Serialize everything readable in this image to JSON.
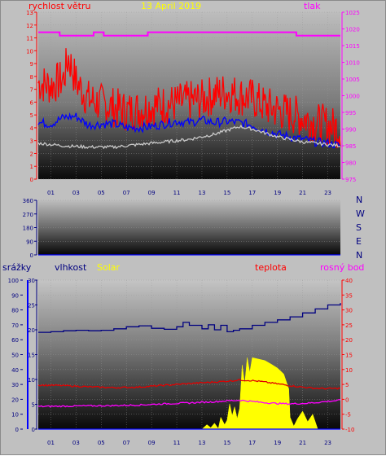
{
  "colors": {
    "background": "#c0c0c0",
    "wind": "#ff0000",
    "wind_avg": "#0000ff",
    "pressure": "#ff00ff",
    "gust_low": "#c8c8c8",
    "humidity": "#000080",
    "temperature": "#e00000",
    "dewpoint": "#ff00ff",
    "solar": "#ffff00",
    "rain": "#0000ff"
  },
  "chart_data": [
    {
      "type": "line",
      "title": "13 April 2019",
      "left_axis_label": "rychlost větru",
      "right_axis_label": "tlak",
      "x_ticks": [
        "01",
        "03",
        "05",
        "07",
        "09",
        "11",
        "13",
        "15",
        "17",
        "19",
        "21",
        "23"
      ],
      "x_range_hours": [
        0,
        24
      ],
      "left_ylim": [
        0,
        13
      ],
      "left_ticks": [
        0,
        1,
        2,
        3,
        4,
        5,
        6,
        7,
        8,
        9,
        10,
        11,
        12,
        13
      ],
      "right_ylim": [
        975,
        1025
      ],
      "right_ticks": [
        975,
        980,
        985,
        990,
        995,
        1000,
        1005,
        1010,
        1015,
        1020,
        1025
      ],
      "series": [
        {
          "key": "gust",
          "axis": "left",
          "color": "#ff0000",
          "style": "noisy",
          "x": [
            0,
            1,
            2,
            2.4,
            3,
            4,
            5,
            6,
            7,
            8,
            9,
            10,
            11,
            12,
            13,
            14,
            15,
            16,
            17,
            18,
            19,
            20,
            21,
            22,
            23,
            24
          ],
          "y": [
            7.5,
            7.3,
            7.8,
            9.5,
            7.6,
            6.2,
            5.9,
            5.6,
            5.3,
            5.4,
            5.7,
            5.8,
            5.9,
            6.1,
            6.2,
            6.6,
            6.8,
            6.5,
            6.3,
            5.7,
            5.4,
            5.1,
            4.8,
            4.4,
            4.2,
            3.9
          ]
        },
        {
          "key": "wind_avg",
          "axis": "left",
          "color": "#0000ff",
          "style": "noisy",
          "x": [
            0,
            1,
            2,
            3,
            4,
            5,
            6,
            7,
            8,
            9,
            10,
            11,
            12,
            13,
            14,
            15,
            16,
            17,
            18,
            19,
            20,
            21,
            22,
            23,
            24
          ],
          "y": [
            4.4,
            4.3,
            4.8,
            4.9,
            4.2,
            4.3,
            4.3,
            4.0,
            4.0,
            4.1,
            4.3,
            4.5,
            4.4,
            4.6,
            4.4,
            4.5,
            4.4,
            4.2,
            3.8,
            3.5,
            3.3,
            3.1,
            2.9,
            2.8,
            2.6
          ]
        },
        {
          "key": "gust_low",
          "axis": "left",
          "color": "#c8c8c8",
          "style": "noisy",
          "x": [
            0,
            2,
            4,
            6,
            8,
            10,
            12,
            14,
            15,
            16,
            17,
            18,
            19,
            20,
            21,
            22,
            23,
            24
          ],
          "y": [
            2.8,
            2.6,
            2.5,
            2.5,
            2.7,
            2.9,
            3.1,
            3.5,
            3.8,
            4.1,
            3.9,
            3.6,
            3.3,
            3.1,
            2.9,
            2.8,
            2.7,
            2.6
          ]
        },
        {
          "key": "pressure",
          "axis": "right",
          "color": "#ff00ff",
          "style": "step",
          "x": [
            0,
            1.5,
            1.7,
            4.2,
            4.4,
            5.0,
            5.2,
            8.5,
            8.7,
            20.3,
            20.5,
            23.5,
            23.7,
            24
          ],
          "y": [
            1019,
            1019,
            1018,
            1018,
            1019,
            1019,
            1018,
            1018,
            1019,
            1019,
            1018,
            1018,
            1018,
            1018
          ]
        }
      ]
    },
    {
      "type": "scatter",
      "x_range_hours": [
        0,
        24
      ],
      "ylim": [
        0,
        360
      ],
      "y_ticks": [
        0,
        90,
        180,
        270,
        360
      ],
      "right_labels": [
        "N",
        "W",
        "S",
        "E",
        "N"
      ],
      "series": [
        {
          "key": "wind_direction",
          "color": "#0000ff",
          "x": [
            0,
            24
          ],
          "y": [
            0,
            0
          ]
        }
      ]
    },
    {
      "type": "line",
      "legend": [
        "srážky",
        "vlhkost",
        "Solar",
        "teplota",
        "rosný bod"
      ],
      "x_ticks": [
        "01",
        "03",
        "05",
        "07",
        "09",
        "11",
        "13",
        "15",
        "17",
        "19",
        "21",
        "23"
      ],
      "x_range_hours": [
        0,
        24
      ],
      "rain_axis": {
        "ylim": [
          0,
          100
        ],
        "ticks": [
          0,
          10,
          20,
          30,
          40,
          50,
          60,
          70,
          80,
          90,
          100
        ]
      },
      "humidity_axis": {
        "ylim": [
          0,
          30
        ],
        "ticks": [
          0,
          5,
          10,
          15,
          20,
          25,
          30
        ]
      },
      "temp_axis": {
        "ylim": [
          -10,
          40
        ],
        "ticks": [
          -10,
          -5,
          0,
          5,
          10,
          15,
          20,
          25,
          30,
          35,
          40
        ]
      },
      "series": [
        {
          "key": "humidity",
          "axis": "humidity",
          "color": "#000080",
          "style": "step",
          "x": [
            0,
            1,
            2,
            3,
            4,
            5,
            6,
            7,
            8,
            9,
            10,
            11,
            11.5,
            12,
            13,
            13.5,
            14,
            14.5,
            15,
            15.5,
            16,
            17,
            18,
            19,
            20,
            21,
            22,
            23,
            24
          ],
          "y": [
            19.5,
            19.6,
            19.8,
            19.9,
            19.8,
            19.9,
            20.2,
            20.6,
            20.8,
            20.3,
            20.1,
            20.6,
            21.5,
            20.9,
            20.2,
            21.0,
            20.0,
            20.9,
            19.6,
            19.9,
            20.2,
            20.9,
            21.5,
            22.0,
            22.6,
            23.4,
            24.2,
            25.0,
            25.4
          ]
        },
        {
          "key": "temperature",
          "axis": "temp",
          "color": "#e00000",
          "style": "noisy",
          "x": [
            0,
            2,
            4,
            6,
            8,
            10,
            12,
            14,
            15,
            16,
            17,
            18,
            19,
            20,
            21,
            22,
            23,
            24
          ],
          "y": [
            4.8,
            4.6,
            4.2,
            3.9,
            4.1,
            4.7,
            5.3,
            5.8,
            6.1,
            6.5,
            6.3,
            5.8,
            5.2,
            4.6,
            4.1,
            3.7,
            3.6,
            3.7
          ]
        },
        {
          "key": "dewpoint",
          "axis": "temp",
          "color": "#ff00ff",
          "style": "noisy",
          "x": [
            0,
            2,
            4,
            6,
            8,
            10,
            12,
            14,
            15,
            16,
            17,
            18,
            19,
            20,
            21,
            22,
            23,
            24
          ],
          "y": [
            -2.4,
            -2.3,
            -2.2,
            -2.1,
            -1.9,
            -1.5,
            -1.2,
            -0.8,
            -0.5,
            -0.3,
            -0.7,
            -1.1,
            -1.4,
            -1.5,
            -1.4,
            -1.1,
            -0.7,
            -0.3
          ]
        },
        {
          "key": "solar",
          "axis": "temp",
          "color": "#ffff00",
          "style": "area",
          "x": [
            13.0,
            13.4,
            13.7,
            14.0,
            14.3,
            14.5,
            14.8,
            15.0,
            15.2,
            15.4,
            15.6,
            15.8,
            16.0,
            16.2,
            16.4,
            16.6,
            16.8,
            17.0,
            17.5,
            18.0,
            18.5,
            19.0,
            19.5,
            19.9,
            20.0,
            20.3,
            20.6,
            21.0,
            21.4,
            21.8,
            22.2
          ],
          "y": [
            -10,
            -8.5,
            -9.5,
            -8.0,
            -9.8,
            -6.0,
            -8.5,
            -7.0,
            -1.5,
            -5.5,
            -2.5,
            -6.5,
            -3.0,
            11.5,
            5.0,
            14.0,
            9.0,
            14.0,
            13.5,
            13.0,
            11.8,
            10.5,
            8.5,
            3.5,
            -6.0,
            -9.0,
            -6.5,
            -4.0,
            -7.5,
            -5.0,
            -10
          ]
        },
        {
          "key": "rain",
          "axis": "rain",
          "color": "#0000ff",
          "style": "line",
          "x": [
            0,
            24
          ],
          "y": [
            0,
            0
          ]
        }
      ]
    }
  ]
}
